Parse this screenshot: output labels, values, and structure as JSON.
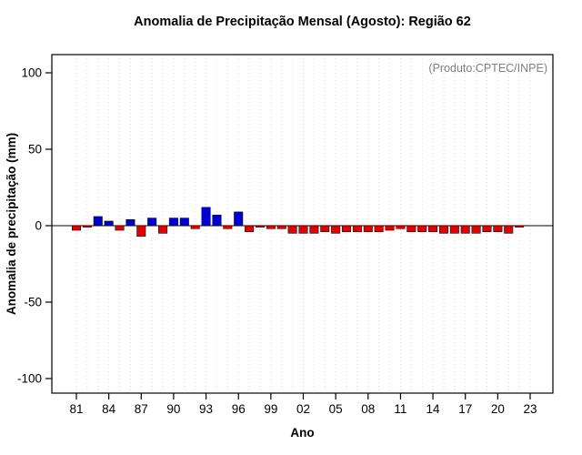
{
  "chart_data": {
    "type": "bar",
    "title": "Anomalia de Precipitação Mensal (Agosto): Região 62",
    "annotation": "(Produto:CPTEC/INPE)",
    "xlabel": "Ano",
    "ylabel": "Anomalia de precipitação (mm)",
    "ylim": [
      -110,
      110
    ],
    "grid": true,
    "y_ticks": [
      100,
      50,
      0,
      -50,
      -100
    ],
    "x_tick_labels": [
      "81",
      "84",
      "87",
      "90",
      "93",
      "96",
      "99",
      "02",
      "05",
      "08",
      "11",
      "14",
      "17",
      "20",
      "23"
    ],
    "x_tick_years": [
      1981,
      1984,
      1987,
      1990,
      1993,
      1996,
      1999,
      2002,
      2005,
      2008,
      2011,
      2014,
      2017,
      2020,
      2023
    ],
    "start_year": 1981,
    "years": [
      1981,
      1982,
      1983,
      1984,
      1985,
      1986,
      1987,
      1988,
      1989,
      1990,
      1991,
      1992,
      1993,
      1994,
      1995,
      1996,
      1997,
      1998,
      1999,
      2000,
      2001,
      2002,
      2003,
      2004,
      2005,
      2006,
      2007,
      2008,
      2009,
      2010,
      2011,
      2012,
      2013,
      2014,
      2015,
      2016,
      2017,
      2018,
      2019,
      2020,
      2021,
      2022,
      2023
    ],
    "values": [
      -3,
      -1,
      6,
      3,
      -3,
      4,
      -7,
      5,
      -5,
      5,
      5,
      -2,
      12,
      7,
      -2,
      9,
      -4,
      -1,
      -2,
      -2,
      -5,
      -5,
      -5,
      -4,
      -5,
      -4,
      -4,
      -4,
      -4,
      -3,
      -2,
      -4,
      -4,
      -4,
      -5,
      -5,
      -5,
      -5,
      -4,
      -4,
      -5,
      -1,
      0
    ],
    "colors": {
      "positive": "#0000cd",
      "negative": "#e30000",
      "grid": "#d8d8d8",
      "axis": "#000000",
      "annotation": "#808080"
    }
  }
}
